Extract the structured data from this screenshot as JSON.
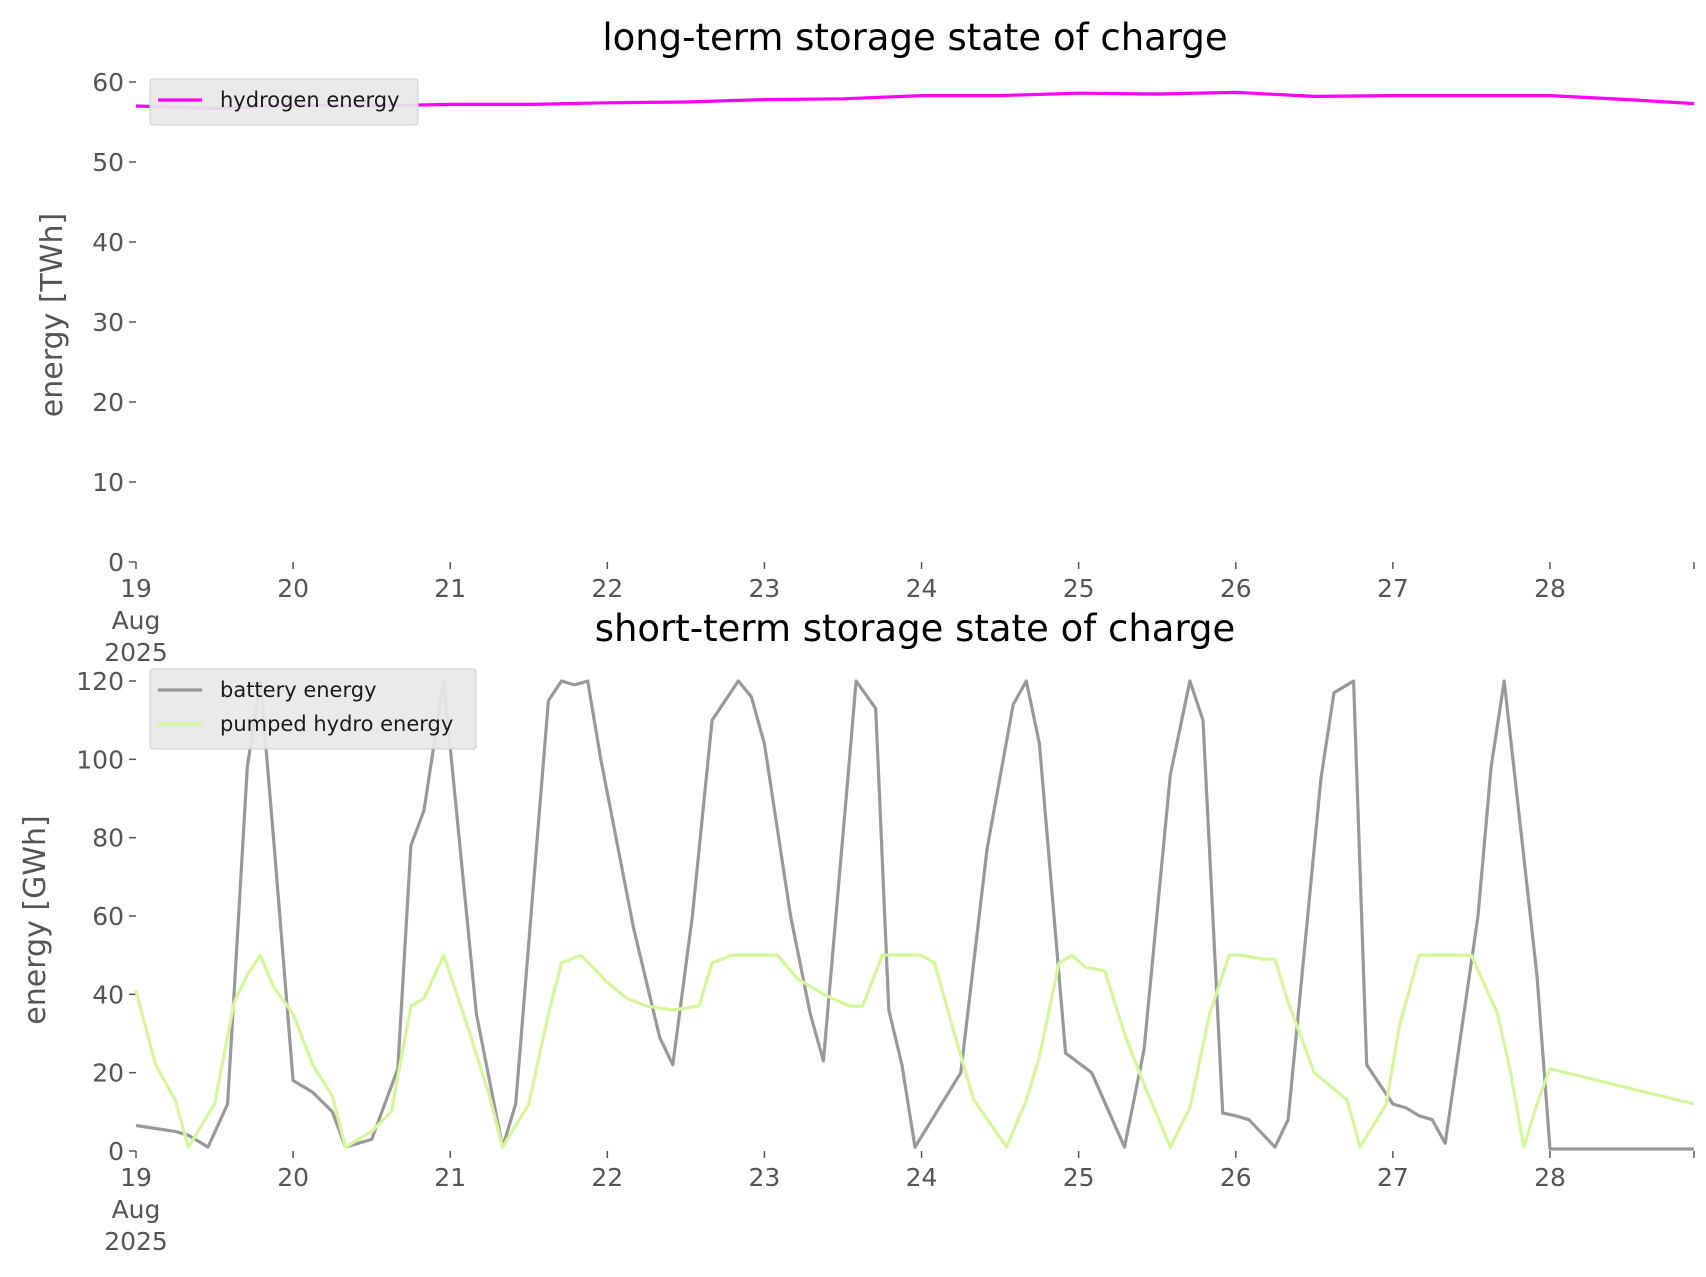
{
  "chart_data": [
    {
      "type": "line",
      "title": "long-term storage state of charge",
      "ylabel": "energy [TWh]",
      "xlabel": "",
      "ylim": [
        0,
        60
      ],
      "yticks": [
        0,
        10,
        20,
        30,
        40,
        50,
        60
      ],
      "xlim": [
        "2025-08-19 00:00",
        "2025-08-28 22:00"
      ],
      "xtick_labels": [
        "19",
        "20",
        "21",
        "22",
        "23",
        "24",
        "25",
        "26",
        "27",
        "28"
      ],
      "xtick_sub": [
        "Aug",
        "2025"
      ],
      "grid": false,
      "legend_position": "top-left",
      "series": [
        {
          "name": "hydrogen energy",
          "color": "#ff00ff",
          "x": [
            "2025-08-19 00:00",
            "2025-08-19 12:00",
            "2025-08-20 00:00",
            "2025-08-20 12:00",
            "2025-08-21 00:00",
            "2025-08-21 12:00",
            "2025-08-22 00:00",
            "2025-08-22 12:00",
            "2025-08-23 00:00",
            "2025-08-23 12:00",
            "2025-08-24 00:00",
            "2025-08-24 12:00",
            "2025-08-25 00:00",
            "2025-08-25 12:00",
            "2025-08-26 00:00",
            "2025-08-26 12:00",
            "2025-08-27 00:00",
            "2025-08-27 12:00",
            "2025-08-28 00:00",
            "2025-08-28 12:00",
            "2025-08-28 22:00"
          ],
          "y": [
            57.0,
            56.7,
            57.1,
            57.0,
            57.2,
            57.2,
            57.4,
            57.5,
            57.8,
            57.9,
            58.3,
            58.3,
            58.6,
            58.5,
            58.7,
            58.2,
            58.3,
            58.3,
            58.3,
            57.8,
            57.3
          ]
        }
      ]
    },
    {
      "type": "line",
      "title": "short-term storage state of charge",
      "ylabel": "energy [GWh]",
      "xlabel": "",
      "ylim": [
        0,
        120
      ],
      "yticks": [
        0,
        20,
        40,
        60,
        80,
        100,
        120
      ],
      "xlim": [
        "2025-08-19 00:00",
        "2025-08-28 22:00"
      ],
      "xtick_labels": [
        "19",
        "20",
        "21",
        "22",
        "23",
        "24",
        "25",
        "26",
        "27",
        "28"
      ],
      "xtick_sub": [
        "Aug",
        "2025"
      ],
      "grid": false,
      "legend_position": "top-left",
      "series": [
        {
          "name": "battery energy",
          "color": "#999999",
          "x": [
            "2025-08-19 00:00",
            "2025-08-19 06:00",
            "2025-08-19 08:00",
            "2025-08-19 11:00",
            "2025-08-19 14:00",
            "2025-08-19 17:00",
            "2025-08-19 19:00",
            "2025-08-19 21:00",
            "2025-08-20 00:00",
            "2025-08-20 03:00",
            "2025-08-20 06:00",
            "2025-08-20 08:00",
            "2025-08-20 12:00",
            "2025-08-20 16:00",
            "2025-08-20 18:00",
            "2025-08-20 20:00",
            "2025-08-20 23:00",
            "2025-08-21 04:00",
            "2025-08-21 08:00",
            "2025-08-21 10:00",
            "2025-08-21 15:00",
            "2025-08-21 17:00",
            "2025-08-21 19:00",
            "2025-08-21 21:00",
            "2025-08-21 23:00",
            "2025-08-22 04:00",
            "2025-08-22 08:00",
            "2025-08-22 10:00",
            "2025-08-22 13:00",
            "2025-08-22 16:00",
            "2025-08-22 20:00",
            "2025-08-22 22:00",
            "2025-08-23 00:00",
            "2025-08-23 04:00",
            "2025-08-23 07:00",
            "2025-08-23 09:00",
            "2025-08-23 13:00",
            "2025-08-23 14:00",
            "2025-08-23 17:00",
            "2025-08-23 19:00",
            "2025-08-23 21:00",
            "2025-08-23 23:00",
            "2025-08-24 06:00",
            "2025-08-24 10:00",
            "2025-08-24 14:00",
            "2025-08-24 16:00",
            "2025-08-24 18:00",
            "2025-08-24 22:00",
            "2025-08-25 02:00",
            "2025-08-25 07:00",
            "2025-08-25 10:00",
            "2025-08-25 14:00",
            "2025-08-25 17:00",
            "2025-08-25 19:00",
            "2025-08-25 22:00",
            "2025-08-26 00:00",
            "2025-08-26 02:00",
            "2025-08-26 06:00",
            "2025-08-26 08:00",
            "2025-08-26 13:00",
            "2025-08-26 15:00",
            "2025-08-26 18:00",
            "2025-08-26 20:00",
            "2025-08-27 00:00",
            "2025-08-27 02:00",
            "2025-08-27 04:00",
            "2025-08-27 06:00",
            "2025-08-27 08:00",
            "2025-08-27 13:00",
            "2025-08-27 15:00",
            "2025-08-27 17:00",
            "2025-08-27 19:00",
            "2025-08-27 22:00",
            "2025-08-28 00:00",
            "2025-08-28 22:00"
          ],
          "y": [
            6.5,
            5,
            4,
            1,
            12,
            98,
            120,
            80,
            18,
            15,
            10,
            1,
            3,
            21,
            78,
            87,
            120,
            35,
            1,
            12,
            115,
            120,
            119,
            120,
            100,
            57,
            29,
            22,
            60,
            110,
            120,
            116,
            104,
            60,
            35,
            23,
            100,
            120,
            113,
            36,
            22,
            1,
            20,
            77,
            114,
            120,
            104,
            25,
            20,
            1,
            26,
            96,
            120,
            110,
            9.7,
            9,
            8,
            1,
            8,
            95,
            117,
            120,
            22,
            12,
            11,
            9,
            8,
            2,
            60,
            98,
            120,
            90,
            45,
            0.5,
            0.5
          ]
        },
        {
          "name": "pumped hydro energy",
          "color": "#d4f79b",
          "x": [
            "2025-08-19 00:00",
            "2025-08-19 03:00",
            "2025-08-19 06:00",
            "2025-08-19 08:00",
            "2025-08-19 12:00",
            "2025-08-19 15:00",
            "2025-08-19 17:00",
            "2025-08-19 19:00",
            "2025-08-19 21:00",
            "2025-08-20 00:00",
            "2025-08-20 03:00",
            "2025-08-20 06:00",
            "2025-08-20 08:00",
            "2025-08-20 12:00",
            "2025-08-20 15:00",
            "2025-08-20 18:00",
            "2025-08-20 20:00",
            "2025-08-20 23:00",
            "2025-08-21 03:00",
            "2025-08-21 06:00",
            "2025-08-21 08:00",
            "2025-08-21 12:00",
            "2025-08-21 15:00",
            "2025-08-21 17:00",
            "2025-08-21 20:00",
            "2025-08-22 00:00",
            "2025-08-22 03:00",
            "2025-08-22 06:00",
            "2025-08-22 10:00",
            "2025-08-22 14:00",
            "2025-08-22 16:00",
            "2025-08-22 19:00",
            "2025-08-22 22:00",
            "2025-08-23 02:00",
            "2025-08-23 05:00",
            "2025-08-23 09:00",
            "2025-08-23 13:00",
            "2025-08-23 15:00",
            "2025-08-23 18:00",
            "2025-08-23 21:00",
            "2025-08-24 00:00",
            "2025-08-24 02:00",
            "2025-08-24 05:00",
            "2025-08-24 08:00",
            "2025-08-24 13:00",
            "2025-08-24 16:00",
            "2025-08-24 18:00",
            "2025-08-24 21:00",
            "2025-08-24 23:00",
            "2025-08-25 01:00",
            "2025-08-25 04:00",
            "2025-08-25 07:00",
            "2025-08-25 10:00",
            "2025-08-25 14:00",
            "2025-08-25 17:00",
            "2025-08-25 20:00",
            "2025-08-25 23:00",
            "2025-08-26 01:00",
            "2025-08-26 04:00",
            "2025-08-26 06:00",
            "2025-08-26 08:00",
            "2025-08-26 12:00",
            "2025-08-26 17:00",
            "2025-08-26 19:00",
            "2025-08-26 23:00",
            "2025-08-27 01:00",
            "2025-08-27 04:00",
            "2025-08-27 06:00",
            "2025-08-27 08:00",
            "2025-08-27 12:00",
            "2025-08-27 16:00",
            "2025-08-27 18:00",
            "2025-08-27 20:00",
            "2025-08-27 22:00",
            "2025-08-28 00:00",
            "2025-08-28 22:00"
          ],
          "y": [
            41,
            22,
            13,
            1,
            12,
            38,
            45,
            50,
            42,
            35,
            22,
            14,
            1,
            5,
            10,
            37,
            39,
            50,
            30,
            14,
            1,
            12,
            35,
            48,
            50,
            43,
            39,
            37,
            36,
            37,
            48,
            50,
            50,
            50,
            44,
            40,
            37,
            37,
            50,
            50,
            50,
            48,
            30,
            13,
            1,
            13,
            24,
            48,
            50,
            47,
            46,
            30,
            17,
            1,
            11,
            35,
            50,
            50,
            49,
            49,
            38,
            20,
            13,
            1,
            12,
            32,
            50,
            50,
            50,
            50,
            35,
            20,
            1,
            12,
            21,
            12
          ]
        }
      ]
    }
  ]
}
